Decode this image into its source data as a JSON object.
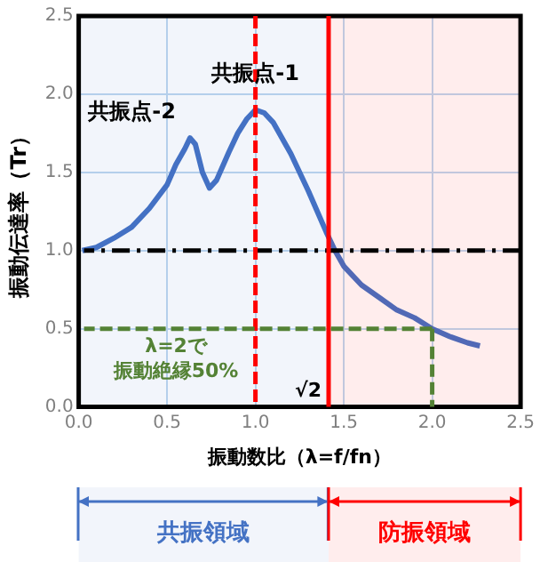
{
  "chart_data": {
    "type": "line",
    "xlabel": "振動数比（λ=f/fn）",
    "ylabel": "振動伝達率（Tr）",
    "x": [
      0.02,
      0.1,
      0.2,
      0.3,
      0.4,
      0.5,
      0.55,
      0.6,
      0.63,
      0.66,
      0.7,
      0.74,
      0.78,
      0.85,
      0.9,
      0.95,
      1.0,
      1.05,
      1.1,
      1.2,
      1.3,
      1.4,
      1.45,
      1.5,
      1.6,
      1.7,
      1.8,
      1.9,
      2.0,
      2.1,
      2.2,
      2.27
    ],
    "series": [
      {
        "color": "#4472c4",
        "values": [
          1.0,
          1.02,
          1.08,
          1.15,
          1.27,
          1.42,
          1.55,
          1.65,
          1.72,
          1.68,
          1.5,
          1.4,
          1.45,
          1.63,
          1.75,
          1.84,
          1.9,
          1.88,
          1.82,
          1.62,
          1.38,
          1.12,
          1.0,
          0.9,
          0.78,
          0.7,
          0.62,
          0.57,
          0.5,
          0.45,
          0.41,
          0.39
        ]
      }
    ],
    "xlim": [
      0,
      2.5
    ],
    "ylim": [
      0,
      2.5
    ],
    "xticks": [
      {
        "value": 0,
        "label": "0.0"
      },
      0.5,
      {
        "value": 1,
        "label": "1.0"
      },
      1.5,
      {
        "value": 2,
        "label": "2.0"
      },
      2.5
    ],
    "yticks": [
      {
        "value": 0,
        "label": "0.0"
      },
      0.5,
      {
        "value": 1,
        "label": "1.0"
      },
      1.5,
      {
        "value": 2,
        "label": "2.0"
      },
      2.5
    ],
    "grid": true,
    "marker": "none",
    "line_style": "solid",
    "ref_lines": [
      {
        "axis": "y",
        "value": 1,
        "color": "#000000",
        "line_style": "dashdot"
      },
      {
        "axis": "x",
        "value": 1,
        "color": "#ff0000",
        "line_style": "dashed"
      },
      {
        "axis": "x",
        "value": 1.414,
        "label": "√2",
        "color": "#ff0000",
        "line_style": "solid"
      },
      {
        "axis": "y",
        "value": 0.5,
        "label": "λ=2で振動絶縁50%",
        "color": "#548235",
        "line_style": "dashed"
      },
      {
        "axis": "x",
        "value": 2,
        "color": "#548235",
        "line_style": "dashed"
      }
    ],
    "bands": [
      {
        "axis": "x",
        "from": 0,
        "to": 1.414,
        "label": "共振領域",
        "color": "#4472c4"
      },
      {
        "axis": "x",
        "from": 1.414,
        "to": 2.5,
        "label": "防振領域",
        "color": "#ff0000"
      }
    ],
    "annotations": [
      {
        "text": "共振点-1",
        "x": 1,
        "y": 1.9
      },
      {
        "text": "共振点-2",
        "x": 0.63,
        "y": 1.72
      }
    ]
  }
}
